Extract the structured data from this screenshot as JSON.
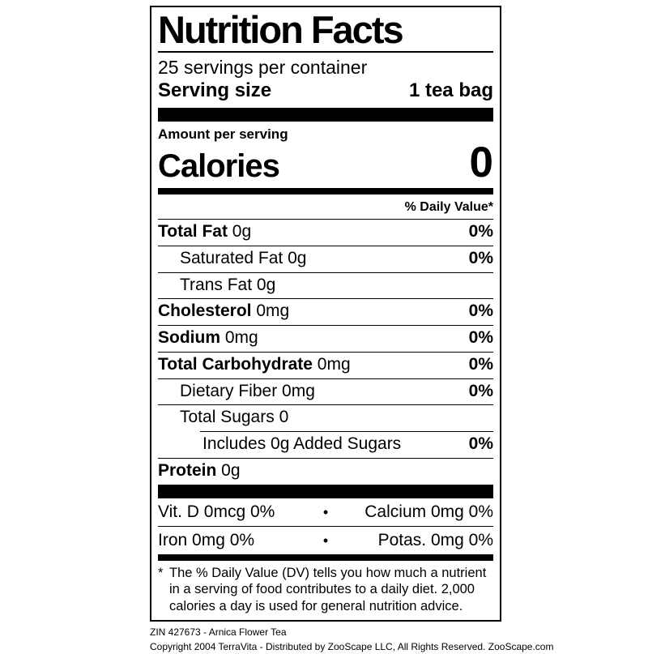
{
  "colors": {
    "ink": "#000000",
    "background": "#ffffff"
  },
  "label": {
    "title": "Nutrition Facts",
    "servings_per_container": "25 servings per container",
    "serving_size_label": "Serving size",
    "serving_size_value": "1 tea bag",
    "amount_per_serving": "Amount per serving",
    "calories_label": "Calories",
    "calories_value": "0",
    "daily_value_header": "% Daily Value*",
    "nutrients": [
      {
        "name": "Total Fat",
        "amount": "0g",
        "dv": "0%",
        "bold": true,
        "indent": 0
      },
      {
        "name": "Saturated Fat",
        "amount": "0g",
        "dv": "0%",
        "bold": false,
        "indent": 1
      },
      {
        "name": "Trans Fat",
        "amount": "0g",
        "dv": "",
        "bold": false,
        "indent": 1
      },
      {
        "name": "Cholesterol",
        "amount": "0mg",
        "dv": "0%",
        "bold": true,
        "indent": 0
      },
      {
        "name": "Sodium",
        "amount": "0mg",
        "dv": "0%",
        "bold": true,
        "indent": 0
      },
      {
        "name": "Total Carbohydrate",
        "amount": "0mg",
        "dv": "0%",
        "bold": true,
        "indent": 0
      },
      {
        "name": "Dietary Fiber",
        "amount": "0mg",
        "dv": "0%",
        "bold": false,
        "indent": 1
      },
      {
        "name": "Total Sugars",
        "amount": "0",
        "dv": "",
        "bold": false,
        "indent": 1
      },
      {
        "name": "Includes 0g Added Sugars",
        "amount": "",
        "dv": "0%",
        "bold": false,
        "indent": 2,
        "partial_rule": true
      },
      {
        "name": "Protein",
        "amount": "0g",
        "dv": "",
        "bold": true,
        "indent": 0
      }
    ],
    "micronutrients": [
      {
        "left": "Vit. D 0mcg 0%",
        "bullet": "•",
        "right": "Calcium 0mg 0%"
      },
      {
        "left": "Iron 0mg 0%",
        "bullet": "•",
        "right": "Potas. 0mg 0%"
      }
    ],
    "footnote_marker": "*",
    "footnote": "The % Daily Value (DV) tells you how much a nutrient in a serving of food contributes to a daily diet. 2,000 calories a day is used for general nutrition advice."
  },
  "footer": {
    "line1": "ZIN 427673 - Arnica Flower Tea",
    "line2": "Copyright 2004 TerraVita - Distributed by ZooScape LLC, All Rights Reserved. ZooScape.com"
  }
}
